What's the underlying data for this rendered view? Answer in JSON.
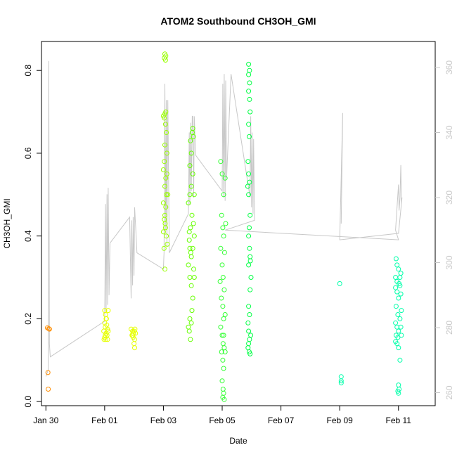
{
  "chart_data": {
    "type": "scatter",
    "title": "ATOM2 Southbound CH3OH_GMI",
    "xlabel": "Date",
    "ylabel": "CH3OH_GMI",
    "y2label": "",
    "xlim": [
      -2.15,
      11.25
    ],
    "ylim": [
      -0.01,
      0.87
    ],
    "y2lim": [
      256,
      368
    ],
    "x_tick_labels": [
      "Jan 30",
      "Feb 01",
      "Feb 03",
      "Feb 05",
      "Feb 07",
      "Feb 09",
      "Feb 11"
    ],
    "x_tick_values": [
      -2,
      0,
      2,
      4,
      6,
      8,
      10
    ],
    "y_ticks": [
      0.0,
      0.2,
      0.4,
      0.6,
      0.8
    ],
    "y2_ticks": [
      260,
      280,
      300,
      320,
      340,
      360
    ],
    "grid": false,
    "x_unit": "days since Feb 01",
    "series": [
      {
        "kind": "points",
        "color": "#ff8c00",
        "points": [
          [
            -1.95,
            0.178
          ],
          [
            -1.9,
            0.176
          ],
          [
            -1.88,
            0.175
          ],
          [
            -1.93,
            0.07
          ],
          [
            -1.92,
            0.03
          ]
        ]
      },
      {
        "kind": "points",
        "color": "#e6ff00",
        "points": [
          [
            0.0,
            0.22
          ],
          [
            0.03,
            0.21
          ],
          [
            0.05,
            0.2
          ],
          [
            0.0,
            0.19
          ],
          [
            0.07,
            0.185
          ],
          [
            0.02,
            0.18
          ],
          [
            0.1,
            0.175
          ],
          [
            -0.03,
            0.17
          ],
          [
            0.05,
            0.165
          ],
          [
            0.08,
            0.16
          ],
          [
            0.0,
            0.155
          ],
          [
            0.04,
            0.15
          ],
          [
            0.1,
            0.15
          ],
          [
            0.12,
            0.22
          ],
          [
            0.06,
            0.2
          ],
          [
            0.12,
            0.17
          ],
          [
            0.02,
            0.16
          ],
          [
            -0.02,
            0.15
          ],
          [
            0.9,
            0.175
          ],
          [
            0.95,
            0.17
          ],
          [
            0.98,
            0.165
          ],
          [
            1.0,
            0.17
          ],
          [
            1.03,
            0.175
          ],
          [
            0.93,
            0.16
          ],
          [
            0.97,
            0.155
          ],
          [
            1.02,
            0.15
          ],
          [
            1.0,
            0.14
          ],
          [
            1.02,
            0.13
          ],
          [
            0.95,
            0.16
          ],
          [
            1.05,
            0.165
          ]
        ]
      },
      {
        "kind": "points",
        "color": "#99ff00",
        "points": [
          [
            2.05,
            0.84
          ],
          [
            2.08,
            0.835
          ],
          [
            2.03,
            0.83
          ],
          [
            2.07,
            0.825
          ],
          [
            2.0,
            0.69
          ],
          [
            2.05,
            0.695
          ],
          [
            2.08,
            0.7
          ],
          [
            2.03,
            0.685
          ],
          [
            2.07,
            0.67
          ],
          [
            2.1,
            0.65
          ],
          [
            2.05,
            0.62
          ],
          [
            2.12,
            0.6
          ],
          [
            2.03,
            0.58
          ],
          [
            2.0,
            0.56
          ],
          [
            2.08,
            0.54
          ],
          [
            2.05,
            0.52
          ],
          [
            2.1,
            0.5
          ],
          [
            2.0,
            0.48
          ],
          [
            2.05,
            0.45
          ],
          [
            2.07,
            0.42
          ],
          [
            2.1,
            0.4
          ],
          [
            2.02,
            0.37
          ],
          [
            2.05,
            0.32
          ],
          [
            2.12,
            0.55
          ],
          [
            2.15,
            0.5
          ],
          [
            2.08,
            0.47
          ],
          [
            2.03,
            0.44
          ],
          [
            2.06,
            0.43
          ],
          [
            2.0,
            0.41
          ],
          [
            2.13,
            0.38
          ]
        ]
      },
      {
        "kind": "points",
        "color": "#66ff00",
        "points": [
          [
            2.85,
            0.18
          ],
          [
            2.9,
            0.2
          ],
          [
            2.88,
            0.17
          ],
          [
            2.92,
            0.15
          ],
          [
            2.95,
            0.19
          ],
          [
            2.9,
            0.3
          ],
          [
            2.85,
            0.33
          ],
          [
            2.95,
            0.35
          ],
          [
            2.9,
            0.37
          ],
          [
            2.88,
            0.39
          ],
          [
            2.92,
            0.42
          ],
          [
            2.97,
            0.45
          ],
          [
            2.85,
            0.48
          ],
          [
            2.9,
            0.5
          ],
          [
            2.95,
            0.52
          ],
          [
            3.0,
            0.55
          ],
          [
            2.9,
            0.57
          ],
          [
            2.95,
            0.6
          ],
          [
            2.92,
            0.63
          ],
          [
            2.98,
            0.65
          ],
          [
            3.0,
            0.66
          ],
          [
            3.05,
            0.5
          ],
          [
            3.02,
            0.43
          ],
          [
            3.05,
            0.4
          ],
          [
            3.0,
            0.37
          ],
          [
            3.03,
            0.32
          ],
          [
            3.05,
            0.3
          ],
          [
            2.95,
            0.28
          ],
          [
            3.0,
            0.25
          ],
          [
            2.97,
            0.22
          ],
          [
            3.02,
            0.64
          ],
          [
            2.88,
            0.41
          ],
          [
            2.93,
            0.36
          ]
        ]
      },
      {
        "kind": "points",
        "color": "#33ff33",
        "points": [
          [
            3.95,
            0.58
          ],
          [
            4.0,
            0.55
          ],
          [
            4.05,
            0.5
          ],
          [
            3.98,
            0.45
          ],
          [
            4.02,
            0.42
          ],
          [
            4.05,
            0.4
          ],
          [
            3.95,
            0.37
          ],
          [
            4.0,
            0.33
          ],
          [
            4.03,
            0.3
          ],
          [
            4.07,
            0.27
          ],
          [
            3.97,
            0.25
          ],
          [
            4.02,
            0.23
          ],
          [
            4.05,
            0.2
          ],
          [
            3.95,
            0.18
          ],
          [
            4.0,
            0.16
          ],
          [
            4.03,
            0.14
          ],
          [
            4.07,
            0.13
          ],
          [
            3.98,
            0.12
          ],
          [
            4.02,
            0.1
          ],
          [
            4.05,
            0.08
          ],
          [
            4.0,
            0.05
          ],
          [
            4.03,
            0.03
          ],
          [
            4.05,
            0.02
          ],
          [
            4.02,
            0.01
          ],
          [
            4.07,
            0.005
          ],
          [
            4.1,
            0.54
          ],
          [
            4.12,
            0.43
          ],
          [
            4.08,
            0.36
          ],
          [
            4.1,
            0.21
          ],
          [
            3.93,
            0.29
          ],
          [
            4.05,
            0.16
          ],
          [
            4.1,
            0.12
          ]
        ]
      },
      {
        "kind": "points",
        "color": "#00ff44",
        "points": [
          [
            4.9,
            0.815
          ],
          [
            4.93,
            0.8
          ],
          [
            4.9,
            0.79
          ],
          [
            4.93,
            0.77
          ],
          [
            4.9,
            0.75
          ],
          [
            4.93,
            0.73
          ],
          [
            4.95,
            0.7
          ],
          [
            4.9,
            0.67
          ],
          [
            4.92,
            0.64
          ],
          [
            4.88,
            0.58
          ],
          [
            4.9,
            0.55
          ],
          [
            4.93,
            0.53
          ],
          [
            4.9,
            0.5
          ],
          [
            4.95,
            0.45
          ],
          [
            4.9,
            0.4
          ],
          [
            4.93,
            0.37
          ],
          [
            4.95,
            0.35
          ],
          [
            4.9,
            0.33
          ],
          [
            4.98,
            0.3
          ],
          [
            4.95,
            0.27
          ],
          [
            4.9,
            0.23
          ],
          [
            4.93,
            0.21
          ],
          [
            4.88,
            0.19
          ],
          [
            4.9,
            0.17
          ],
          [
            4.93,
            0.15
          ],
          [
            4.88,
            0.13
          ],
          [
            4.92,
            0.12
          ],
          [
            4.95,
            0.115
          ],
          [
            4.9,
            0.14
          ],
          [
            4.97,
            0.16
          ],
          [
            4.87,
            0.52
          ],
          [
            4.92,
            0.42
          ],
          [
            4.96,
            0.34
          ]
        ]
      },
      {
        "kind": "points",
        "color": "#00ffaa",
        "points": [
          [
            8.0,
            0.285
          ],
          [
            8.05,
            0.06
          ],
          [
            8.05,
            0.05
          ],
          [
            8.05,
            0.045
          ],
          [
            9.92,
            0.345
          ],
          [
            9.95,
            0.33
          ],
          [
            10.0,
            0.32
          ],
          [
            9.9,
            0.3
          ],
          [
            9.95,
            0.29
          ],
          [
            10.02,
            0.285
          ],
          [
            9.9,
            0.275
          ],
          [
            9.95,
            0.265
          ],
          [
            10.0,
            0.25
          ],
          [
            9.92,
            0.23
          ],
          [
            9.98,
            0.21
          ],
          [
            9.9,
            0.19
          ],
          [
            9.95,
            0.18
          ],
          [
            10.0,
            0.17
          ],
          [
            9.92,
            0.16
          ],
          [
            9.98,
            0.155
          ],
          [
            9.9,
            0.145
          ],
          [
            9.95,
            0.14
          ],
          [
            10.0,
            0.13
          ],
          [
            10.05,
            0.1
          ],
          [
            10.0,
            0.04
          ],
          [
            10.02,
            0.03
          ],
          [
            9.98,
            0.025
          ],
          [
            10.0,
            0.02
          ],
          [
            10.05,
            0.28
          ],
          [
            10.08,
            0.26
          ],
          [
            10.1,
            0.22
          ],
          [
            10.05,
            0.2
          ],
          [
            10.08,
            0.18
          ],
          [
            10.1,
            0.16
          ],
          [
            10.05,
            0.3
          ],
          [
            10.08,
            0.31
          ]
        ]
      },
      {
        "kind": "line",
        "name": "",
        "axis": "right",
        "color": "#c8c8c8",
        "points": [
          [
            -2.0,
            265
          ],
          [
            -1.92,
            267
          ],
          [
            -1.9,
            362
          ],
          [
            -1.88,
            275
          ],
          [
            -1.85,
            271
          ],
          [
            0.0,
            282
          ],
          [
            0.03,
            318
          ],
          [
            0.05,
            285
          ],
          [
            0.08,
            321
          ],
          [
            0.1,
            287
          ],
          [
            0.12,
            323
          ],
          [
            0.15,
            290
          ],
          [
            0.18,
            306
          ],
          [
            0.85,
            314
          ],
          [
            0.9,
            289
          ],
          [
            0.92,
            313
          ],
          [
            0.95,
            293
          ],
          [
            0.97,
            314
          ],
          [
            1.0,
            296
          ],
          [
            1.02,
            317
          ],
          [
            1.05,
            312
          ],
          [
            1.1,
            303
          ],
          [
            2.0,
            298
          ],
          [
            2.02,
            303
          ],
          [
            2.05,
            355
          ],
          [
            2.08,
            310
          ],
          [
            2.1,
            350
          ],
          [
            2.12,
            305
          ],
          [
            2.15,
            350
          ],
          [
            2.2,
            303
          ],
          [
            2.85,
            315
          ],
          [
            2.88,
            340
          ],
          [
            2.9,
            318
          ],
          [
            2.93,
            343
          ],
          [
            2.95,
            322
          ],
          [
            2.98,
            345
          ],
          [
            3.0,
            345
          ],
          [
            3.03,
            320
          ],
          [
            3.05,
            345
          ],
          [
            3.1,
            333
          ],
          [
            4.0,
            322
          ],
          [
            4.02,
            355
          ],
          [
            4.05,
            320
          ],
          [
            4.07,
            358
          ],
          [
            4.1,
            319
          ],
          [
            4.12,
            356
          ],
          [
            4.15,
            326
          ],
          [
            4.3,
            358
          ],
          [
            4.95,
            320
          ],
          [
            4.97,
            345
          ],
          [
            5.0,
            317
          ],
          [
            5.02,
            340
          ],
          [
            5.05,
            315
          ],
          [
            5.07,
            338
          ],
          [
            5.1,
            313
          ],
          [
            4.1,
            310
          ],
          [
            10.0,
            307
          ],
          [
            9.9,
            310
          ],
          [
            10.0,
            324
          ],
          [
            10.02,
            316
          ],
          [
            10.05,
            320
          ],
          [
            10.08,
            330
          ],
          [
            10.1,
            318
          ],
          [
            10.12,
            320
          ],
          [
            10.0,
            309
          ],
          [
            8.0,
            307
          ],
          [
            8.1,
            346
          ],
          [
            8.05,
            312
          ]
        ]
      }
    ]
  }
}
